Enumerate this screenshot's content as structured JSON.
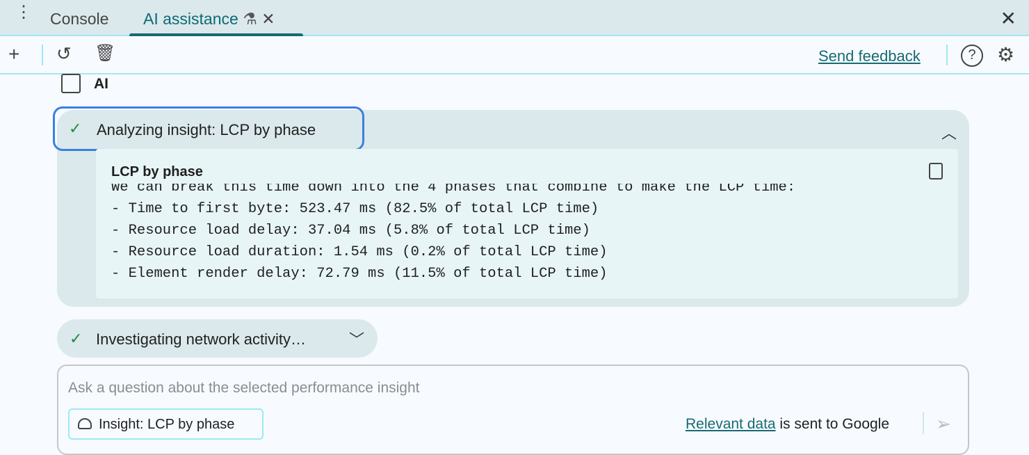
{
  "tabs": {
    "console": "Console",
    "ai": "AI assistance"
  },
  "toolbar": {
    "feedback": "Send feedback"
  },
  "chat": {
    "author": "AI",
    "step1": {
      "title": "Analyzing insight: LCP by phase",
      "code_title": "LCP by phase",
      "lines": [
        "We can break this time down into the 4 phases that combine to make the LCP time:",
        "",
        "- Time to first byte: 523.47 ms (82.5% of total LCP time)",
        "- Resource load delay: 37.04 ms (5.8% of total LCP time)",
        "- Resource load duration: 1.54 ms (0.2% of total LCP time)",
        "- Element render delay: 72.79 ms (11.5% of total LCP time)"
      ]
    },
    "step2": {
      "title": "Investigating network activity…"
    }
  },
  "input": {
    "placeholder": "Ask a question about the selected performance insight",
    "chip": "Insight: LCP by phase",
    "disclaimer_link": "Relevant data",
    "disclaimer_rest": " is sent to Google"
  }
}
